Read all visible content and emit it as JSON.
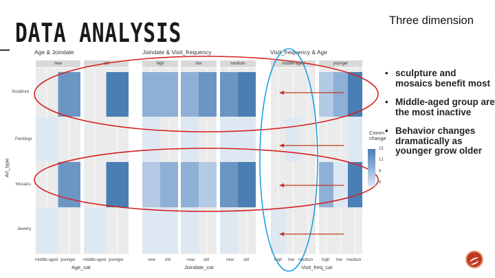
{
  "slide": {
    "title": "DATA ANALYSIS",
    "side_heading": "Three dimension",
    "bullets": [
      "sculpture and mosaics benefit most",
      "Middle-aged group are the most inactive",
      "Behavior changes dramatically as younger grow older"
    ],
    "bullet_symbol": "•"
  },
  "figure": {
    "y_axis_title": "Art_type",
    "y_categories": [
      "Sculpture",
      "Paintings",
      "Mosaics",
      "Jewelry"
    ],
    "legend": {
      "title_line1": "Comm",
      "title_line2": "change",
      "ticks": [
        "15",
        "12",
        "9",
        "6"
      ]
    },
    "colors": {
      "panel_bg": "#ebebeb",
      "grid": "#ffffff",
      "strip": "#d9d9d9",
      "highlight_red": "#d42020",
      "highlight_blue": "#1ca0e0",
      "arrow": "#c0391f"
    },
    "panels": [
      {
        "title": "Age & Joindate",
        "x_axis_title": "Age_cat",
        "facets": [
          {
            "strip": "new",
            "x_ticks": [
              "middle-aged",
              "younger"
            ]
          },
          {
            "strip": "old",
            "x_ticks": [
              "middle-aged",
              "younger"
            ]
          }
        ]
      },
      {
        "title": "Joindate & Visit_frequency",
        "x_axis_title": "Joindate_cat",
        "facets": [
          {
            "strip": "high",
            "x_ticks": [
              "new",
              "old"
            ]
          },
          {
            "strip": "low",
            "x_ticks": [
              "new",
              "old"
            ]
          },
          {
            "strip": "medium",
            "x_ticks": [
              "new",
              "old"
            ]
          }
        ]
      },
      {
        "title": "Visit_frequency & Age",
        "x_axis_title": "Visit_freq_cat",
        "facets": [
          {
            "strip": "middle-aged",
            "x_ticks": [
              "high",
              "low",
              "medium"
            ]
          },
          {
            "strip": "younger",
            "x_ticks": [
              "high",
              "low",
              "medium"
            ]
          }
        ]
      }
    ]
  }
}
